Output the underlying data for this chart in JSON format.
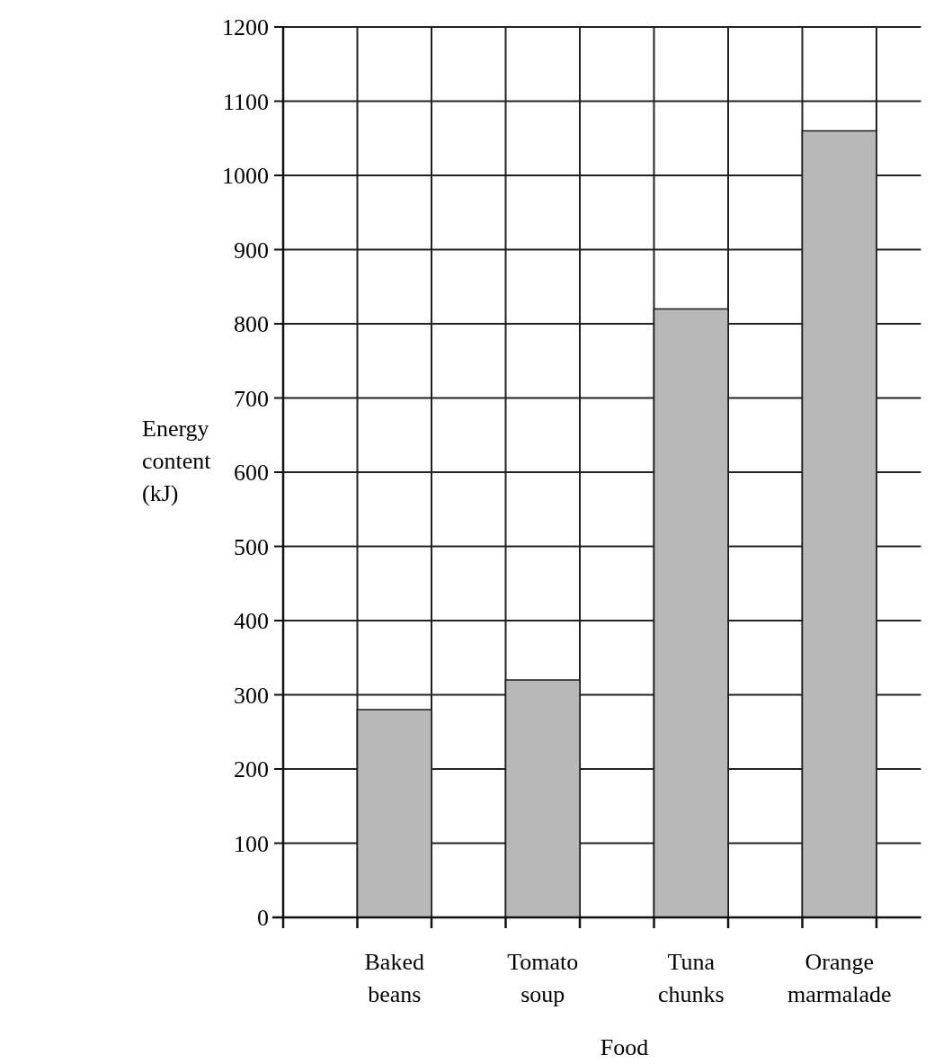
{
  "chart_data": {
    "type": "bar",
    "xlabel": "Food",
    "ylabel": "Energy content (kJ)",
    "categories": [
      "Baked beans",
      "Tomato soup",
      "Tuna chunks",
      "Orange marmalade"
    ],
    "values": [
      280,
      320,
      820,
      1060
    ],
    "color": "#b8b8b8",
    "ylim": [
      0,
      1200
    ],
    "yticks": [
      0,
      100,
      200,
      300,
      400,
      500,
      600,
      700,
      800,
      900,
      1000,
      1100,
      1200
    ],
    "grid": true
  }
}
